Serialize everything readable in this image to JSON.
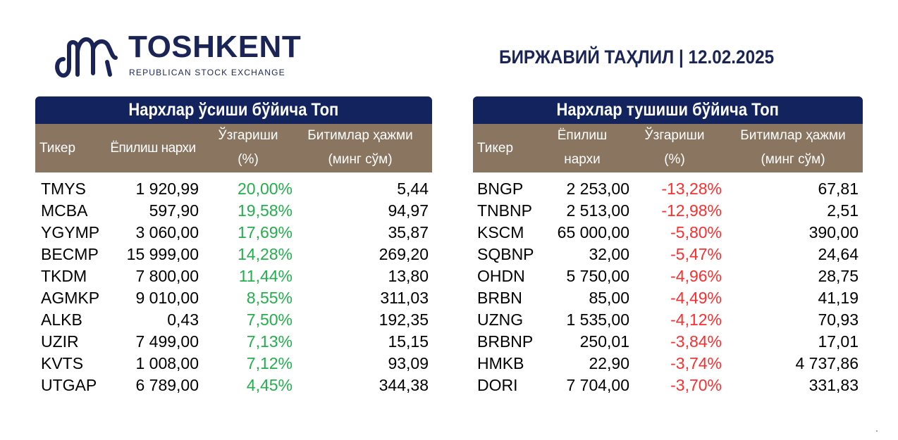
{
  "logo": {
    "title": "TOSHKENT",
    "subtitle": "REPUBLICAN STOCK EXCHANGE"
  },
  "report_title": "БИРЖАВИЙ ТАҲЛИЛ | 12.02.2025",
  "colors": {
    "header_navy": "#12235e",
    "column_header_brown": "#8a7560",
    "positive_green": "#21b04b",
    "negative_red": "#ff2d2d",
    "brand_navy": "#1b2456"
  },
  "gainers": {
    "title": "Нархлар ўсиши бўйича Топ",
    "headers": {
      "ticker": "Тикер",
      "price": "Ёпилиш нархи",
      "change_1": "Ўзгариши",
      "change_2": "(%)",
      "volume_1": "Битимлар ҳажми",
      "volume_2": "(минг сўм)"
    },
    "rows": [
      {
        "ticker": "TMYS",
        "price": "1 920,99",
        "change": "20,00%",
        "volume": "5,44"
      },
      {
        "ticker": "MCBA",
        "price": "597,90",
        "change": "19,58%",
        "volume": "94,97"
      },
      {
        "ticker": "YGYMP",
        "price": "3 060,00",
        "change": "17,69%",
        "volume": "35,87"
      },
      {
        "ticker": "BECMP",
        "price": "15 999,00",
        "change": "14,28%",
        "volume": "269,20"
      },
      {
        "ticker": "TKDM",
        "price": "7 800,00",
        "change": "11,44%",
        "volume": "13,80"
      },
      {
        "ticker": "AGMKP",
        "price": "9 010,00",
        "change": "8,55%",
        "volume": "311,03"
      },
      {
        "ticker": "ALKB",
        "price": "0,43",
        "change": "7,50%",
        "volume": "192,35"
      },
      {
        "ticker": "UZIR",
        "price": "7 499,00",
        "change": "7,13%",
        "volume": "15,15"
      },
      {
        "ticker": "KVTS",
        "price": "1 008,00",
        "change": "7,12%",
        "volume": "93,09"
      },
      {
        "ticker": "UTGAP",
        "price": "6 789,00",
        "change": "4,45%",
        "volume": "344,38"
      }
    ]
  },
  "losers": {
    "title": "Нархлар тушиши бўйича Топ",
    "headers": {
      "ticker": "Тикер",
      "price_1": "Ёпилиш",
      "price_2": "нархи",
      "change_1": "Ўзгариши",
      "change_2": "(%)",
      "volume_1": "Битимлар ҳажми",
      "volume_2": "(минг сўм)"
    },
    "rows": [
      {
        "ticker": "BNGP",
        "price": "2 253,00",
        "change": "-13,28%",
        "volume": "67,81"
      },
      {
        "ticker": "TNBNP",
        "price": "2 513,00",
        "change": "-12,98%",
        "volume": "2,51"
      },
      {
        "ticker": "KSCM",
        "price": "65 000,00",
        "change": "-5,80%",
        "volume": "390,00"
      },
      {
        "ticker": "SQBNP",
        "price": "32,00",
        "change": "-5,47%",
        "volume": "24,64"
      },
      {
        "ticker": "OHDN",
        "price": "5 750,00",
        "change": "-4,96%",
        "volume": "28,75"
      },
      {
        "ticker": "BRBN",
        "price": "85,00",
        "change": "-4,49%",
        "volume": "41,19"
      },
      {
        "ticker": "UZNG",
        "price": "1 535,00",
        "change": "-4,12%",
        "volume": "70,93"
      },
      {
        "ticker": "BRBNP",
        "price": "250,01",
        "change": "-3,84%",
        "volume": "17,01"
      },
      {
        "ticker": "HMKB",
        "price": "22,90",
        "change": "-3,74%",
        "volume": "4 737,86"
      },
      {
        "ticker": "DORI",
        "price": "7 704,00",
        "change": "-3,70%",
        "volume": "331,83"
      }
    ]
  },
  "footer_mark": "."
}
